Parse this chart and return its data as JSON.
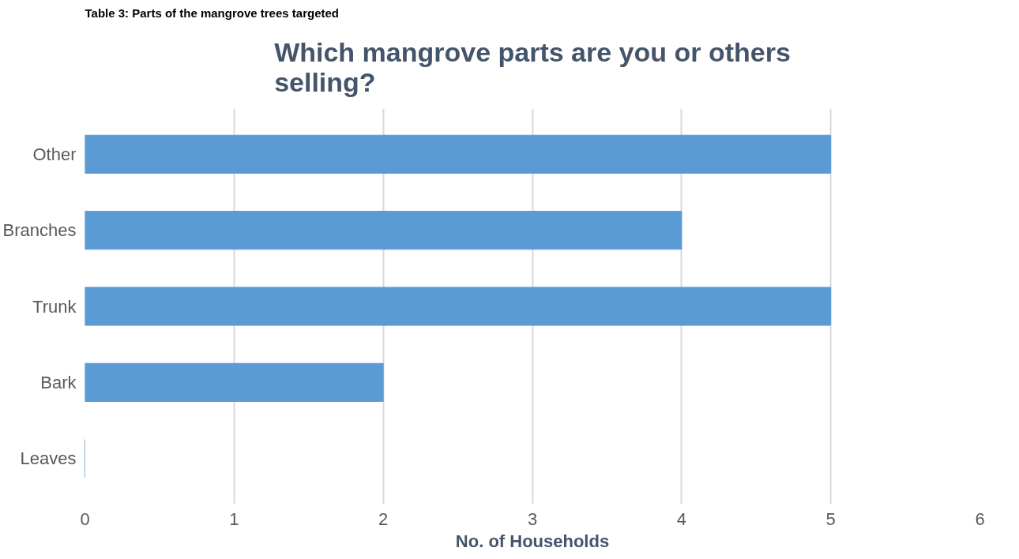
{
  "chart_data": {
    "type": "bar",
    "orientation": "horizontal",
    "title": "Which mangrove parts are you or others selling?",
    "xlabel": "No. of Households",
    "annotations": [
      "Table 3: Parts of the mangrove trees targeted"
    ],
    "categories": [
      "Other",
      "Branches",
      "Trunk",
      "Bark",
      "Leaves"
    ],
    "values": [
      5,
      4,
      5,
      2,
      0
    ],
    "color": "#5b9bd5",
    "xlim": [
      0,
      6
    ],
    "xticks": [
      0,
      1,
      2,
      3,
      4,
      5,
      6
    ],
    "grid": "x"
  }
}
